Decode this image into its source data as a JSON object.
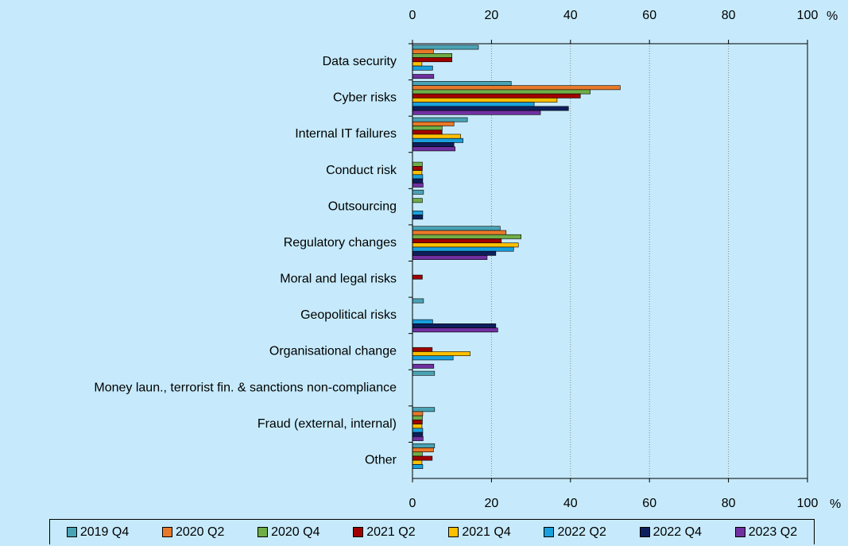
{
  "chart_data": {
    "type": "hbar",
    "x_unit": "%",
    "categories": [
      "Data security",
      "Cyber risks",
      "Internal IT failures",
      "Conduct risk",
      "Outsourcing",
      "Regulatory changes",
      "Moral and legal risks",
      "Geopolitical risks",
      "Organisational change",
      "Money laun., terrorist fin. & sanctions non-compliance",
      "Fraud (external, internal)",
      "Other"
    ],
    "series": [
      {
        "name": "2019 Q4",
        "color": "#4aa3b5",
        "values": [
          16.7,
          25.0,
          13.9,
          0,
          2.8,
          22.2,
          0,
          2.8,
          0,
          5.6,
          5.6,
          5.6
        ]
      },
      {
        "name": "2020 Q2",
        "color": "#e8792a",
        "values": [
          5.3,
          52.6,
          10.5,
          0,
          0,
          23.7,
          0,
          0,
          0,
          0,
          2.6,
          5.3
        ]
      },
      {
        "name": "2020 Q4",
        "color": "#70ad47",
        "values": [
          10.0,
          45.0,
          7.5,
          2.5,
          2.5,
          27.5,
          0,
          0,
          0,
          0,
          2.5,
          2.5
        ]
      },
      {
        "name": "2021 Q2",
        "color": "#a00000",
        "values": [
          10.0,
          42.5,
          7.5,
          2.5,
          0,
          22.5,
          2.5,
          0,
          5.0,
          0,
          2.5,
          5.0
        ]
      },
      {
        "name": "2021 Q4",
        "color": "#ffc000",
        "values": [
          2.4,
          36.6,
          12.2,
          2.4,
          0,
          26.8,
          0,
          0,
          14.6,
          0,
          2.4,
          2.4
        ]
      },
      {
        "name": "2022 Q2",
        "color": "#1aa0dc",
        "values": [
          5.1,
          30.8,
          12.8,
          2.6,
          2.6,
          25.6,
          0,
          5.1,
          10.3,
          0,
          2.6,
          2.6
        ]
      },
      {
        "name": "2022 Q4",
        "color": "#0d1f5c",
        "values": [
          0,
          39.5,
          10.5,
          2.6,
          2.6,
          21.1,
          0,
          21.1,
          0,
          0,
          2.6,
          0
        ]
      },
      {
        "name": "2023 Q2",
        "color": "#7030a0",
        "values": [
          5.4,
          32.4,
          10.8,
          2.7,
          0,
          18.9,
          0,
          21.6,
          5.4,
          0,
          2.7,
          0
        ]
      }
    ],
    "xlim": [
      0,
      100
    ],
    "xticks": [
      0,
      20,
      40,
      60,
      80,
      100
    ],
    "grid": true
  }
}
